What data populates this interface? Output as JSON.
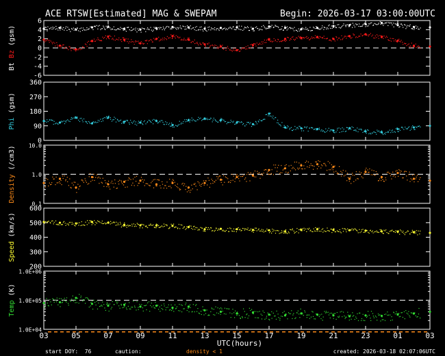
{
  "header": {
    "title": "ACE RTSW[Estimated] MAG & SWEPAM",
    "begin": "Begin: 2026-03-17 03:00:00UTC"
  },
  "footer": {
    "start_doy": "start DOY:  76",
    "caution": "caution:",
    "density_note": "density < 1",
    "created": "created: 2026-03-18 02:07:06UTC"
  },
  "colors": {
    "background": "#000000",
    "frame": "#ffffff",
    "bt": "#ffffff",
    "bz": "#ff1a1a",
    "phi": "#33ccdd",
    "density": "#ff8c1a",
    "speed": "#ffff33",
    "temp": "#33dd33"
  },
  "chart_data": {
    "type": "scatter",
    "xlabel": "UTC(hours)",
    "x_tick_labels": [
      "03",
      "05",
      "07",
      "09",
      "11",
      "13",
      "15",
      "17",
      "19",
      "21",
      "23",
      "01",
      "03"
    ],
    "x_range_hours": [
      3,
      27
    ],
    "panels": [
      {
        "id": "mag",
        "ylabel_parts": [
          "Bt",
          "Bz",
          "(gsm)"
        ],
        "ylim": [
          -6,
          6
        ],
        "yticks": [
          "6",
          "4",
          "2",
          "0",
          "-2",
          "-4",
          "-6"
        ],
        "log": false,
        "reference_line": 0,
        "series": [
          {
            "name": "Bt",
            "x": [
              3,
              4,
              5,
              6,
              7,
              8,
              9,
              10,
              11,
              12,
              13,
              14,
              15,
              16,
              17,
              18,
              19,
              20,
              21,
              22,
              23,
              24,
              25,
              26,
              27
            ],
            "y": [
              4.2,
              4.4,
              4.0,
              4.5,
              4.6,
              4.2,
              4.0,
              4.3,
              4.6,
              4.5,
              4.2,
              4.4,
              4.5,
              4.2,
              4.7,
              4.4,
              4.1,
              4.4,
              4.8,
              5.0,
              5.2,
              5.5,
              5.0,
              4.6,
              4.5
            ]
          },
          {
            "name": "Bz",
            "x": [
              3,
              4,
              5,
              6,
              7,
              8,
              9,
              10,
              11,
              12,
              13,
              14,
              15,
              16,
              17,
              18,
              19,
              20,
              21,
              22,
              23,
              24,
              25,
              26,
              27
            ],
            "y": [
              1.8,
              0.5,
              -0.3,
              1.5,
              2.5,
              1.8,
              1.0,
              2.0,
              2.6,
              1.8,
              0.8,
              0.3,
              -0.5,
              0.6,
              1.8,
              2.0,
              2.2,
              2.4,
              2.0,
              2.6,
              3.0,
              2.4,
              1.6,
              0.5,
              0.3
            ]
          }
        ]
      },
      {
        "id": "phi",
        "ylabel_parts": [
          "Phi",
          "(gsm)"
        ],
        "ylim": [
          0,
          360
        ],
        "yticks": [
          "360",
          "270",
          "180",
          "90",
          "0"
        ],
        "log": false,
        "reference_line": null,
        "series": [
          {
            "name": "Phi",
            "x": [
              3,
              4,
              5,
              6,
              7,
              8,
              9,
              10,
              11,
              12,
              13,
              14,
              15,
              16,
              17,
              18,
              19,
              20,
              21,
              22,
              23,
              24,
              25,
              26,
              27
            ],
            "y": [
              120,
              110,
              140,
              105,
              140,
              115,
              110,
              120,
              95,
              125,
              135,
              125,
              110,
              100,
              165,
              80,
              75,
              70,
              60,
              75,
              55,
              50,
              70,
              80,
              90
            ]
          }
        ]
      },
      {
        "id": "density",
        "ylabel_parts": [
          "Density",
          "(/cm3)"
        ],
        "ylim": [
          0.1,
          10
        ],
        "yticks": [
          "10.0",
          "1.0",
          "0.1"
        ],
        "log": true,
        "reference_line": 1,
        "series": [
          {
            "name": "Density",
            "x": [
              3,
              4,
              5,
              6,
              7,
              8,
              9,
              10,
              11,
              12,
              13,
              14,
              15,
              16,
              17,
              18,
              19,
              20,
              21,
              22,
              23,
              24,
              25,
              26,
              27
            ],
            "y": [
              0.5,
              0.7,
              0.35,
              0.8,
              0.45,
              0.55,
              0.6,
              0.45,
              0.5,
              0.35,
              0.5,
              0.65,
              0.8,
              0.9,
              1.4,
              1.6,
              2.0,
              2.2,
              1.8,
              0.7,
              1.2,
              0.8,
              1.1,
              0.7,
              0.6
            ]
          }
        ]
      },
      {
        "id": "speed",
        "ylabel_parts": [
          "Speed",
          "(km/s)"
        ],
        "ylim": [
          200,
          600
        ],
        "yticks": [
          "600",
          "500",
          "400",
          "300",
          "200"
        ],
        "log": false,
        "reference_line": null,
        "series": [
          {
            "name": "Speed",
            "x": [
              3,
              4,
              5,
              6,
              7,
              8,
              9,
              10,
              11,
              12,
              13,
              14,
              15,
              16,
              17,
              18,
              19,
              20,
              21,
              22,
              23,
              24,
              25,
              26,
              27
            ],
            "y": [
              505,
              500,
              495,
              505,
              500,
              485,
              482,
              480,
              478,
              470,
              455,
              458,
              455,
              450,
              448,
              440,
              450,
              455,
              450,
              448,
              445,
              440,
              438,
              435,
              430
            ]
          }
        ]
      },
      {
        "id": "temp",
        "ylabel_parts": [
          "Temp",
          "(K)"
        ],
        "ylim": [
          10000,
          1000000
        ],
        "yticks": [
          "1.0E+06",
          "1.0E+05",
          "1.0E+04"
        ],
        "log": true,
        "reference_line": 100000,
        "series": [
          {
            "name": "Temp",
            "x": [
              3,
              4,
              5,
              6,
              7,
              8,
              9,
              10,
              11,
              12,
              13,
              14,
              15,
              16,
              17,
              18,
              19,
              20,
              21,
              22,
              23,
              24,
              25,
              26,
              27
            ],
            "y": [
              80000,
              85000,
              120000,
              75000,
              65000,
              70000,
              60000,
              65000,
              55000,
              60000,
              45000,
              40000,
              35000,
              38000,
              32000,
              30000,
              35000,
              32000,
              30000,
              28000,
              30000,
              29000,
              32000,
              35000,
              40000
            ]
          }
        ]
      }
    ]
  }
}
